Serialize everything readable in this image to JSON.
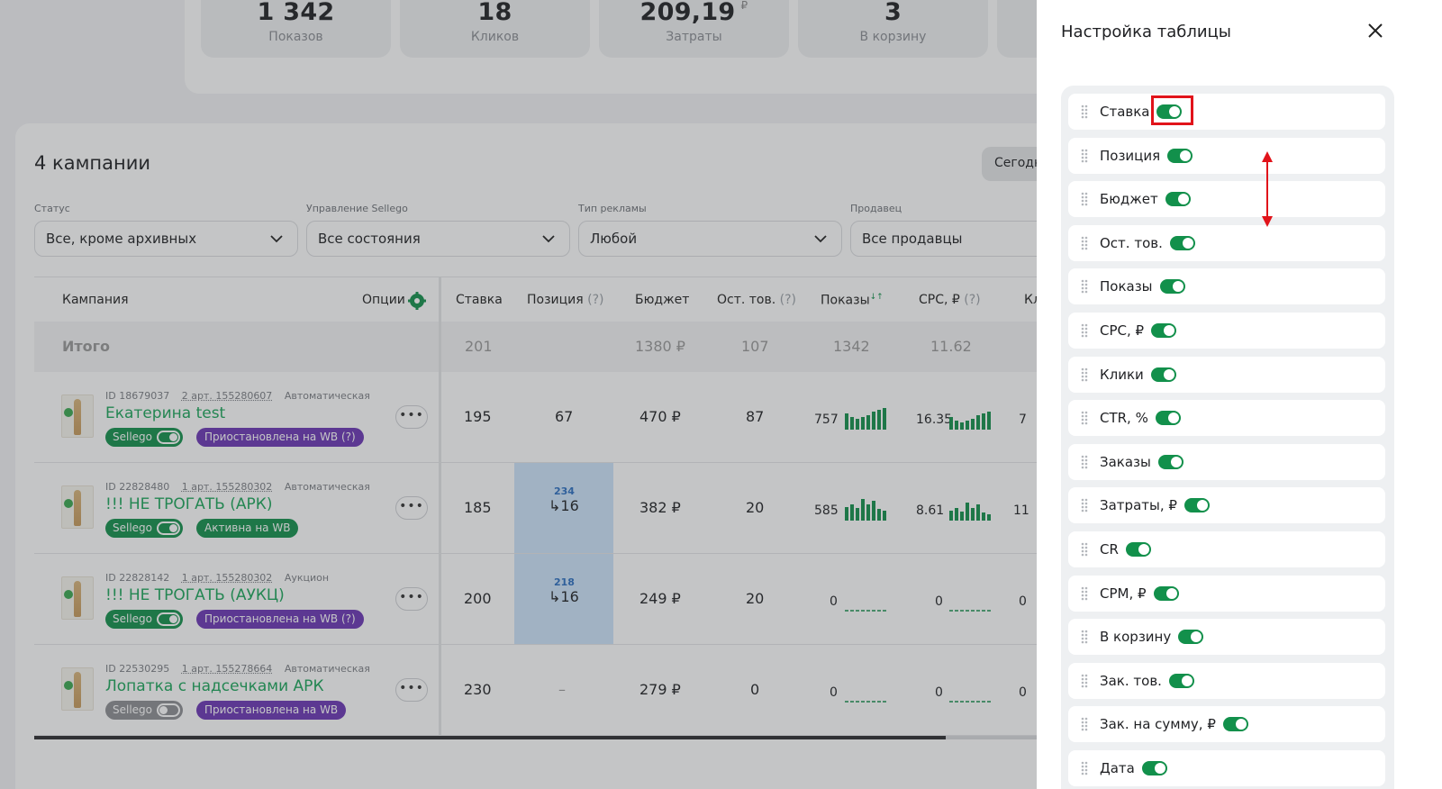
{
  "stats": [
    {
      "value": "1 342",
      "label": "Показов",
      "currency": ""
    },
    {
      "value": "18",
      "label": "Кликов",
      "currency": ""
    },
    {
      "value": "209,19",
      "label": "Затраты",
      "currency": "₽"
    },
    {
      "value": "3",
      "label": "В корзину",
      "currency": ""
    }
  ],
  "campaigns": {
    "title": "4 кампании",
    "today_button": "Сегодн",
    "filters": [
      {
        "label": "Статус",
        "value": "Все, кроме архивных"
      },
      {
        "label": "Управление Sellego",
        "value": "Все состояния"
      },
      {
        "label": "Тип рекламы",
        "value": "Любой"
      },
      {
        "label": "Продавец",
        "value": "Все продавцы"
      }
    ],
    "columns": {
      "campaign": "Кампания",
      "options": "Опции",
      "bid": "Ставка",
      "position": "Позиция",
      "position_hint": "(?)",
      "budget": "Бюджет",
      "stock": "Ост. тов.",
      "stock_hint": "(?)",
      "shows": "Показы",
      "shows_sort": "↓↑",
      "cpc": "CPC, ₽",
      "cpc_hint": "(?)",
      "clicks": "Кл"
    },
    "totals": {
      "label": "Итого",
      "bid": "201",
      "budget": "1380 ₽",
      "stock": "107",
      "shows": "1342",
      "cpc": "11.62"
    },
    "rows": [
      {
        "id": "ID 18679037",
        "art": "2 арт. 155280607",
        "type": "Автоматическая",
        "name": "Екатерина test",
        "sellego": "Sellego",
        "sellego_on": true,
        "status": "Приостановлена на WB (?)",
        "status_color": "#6a35b5",
        "bid": "195",
        "position": "67",
        "position_top": "",
        "budget": "470 ₽",
        "stock": "87",
        "shows": "757",
        "cpc": "16.35",
        "clicks": "7"
      },
      {
        "id": "ID 22828480",
        "art": "1 арт. 155280302",
        "type": "Автоматическая",
        "name": "!!! НЕ ТРОГАТЬ (АРК)",
        "sellego": "Sellego",
        "sellego_on": true,
        "status": "Активна на WB",
        "status_color": "#12904b",
        "bid": "185",
        "position": "16",
        "position_top": "234",
        "budget": "382 ₽",
        "stock": "20",
        "shows": "585",
        "cpc": "8.61",
        "clicks": "11"
      },
      {
        "id": "ID 22828142",
        "art": "1 арт. 155280302",
        "type": "Аукцион",
        "name": "!!! НЕ ТРОГАТЬ (АУКЦ)",
        "sellego": "Sellego",
        "sellego_on": true,
        "status": "Приостановлена на WB (?)",
        "status_color": "#6a35b5",
        "bid": "200",
        "position": "16",
        "position_top": "218",
        "budget": "249 ₽",
        "stock": "20",
        "shows": "0",
        "cpc": "0",
        "clicks": "0"
      },
      {
        "id": "ID 22530295",
        "art": "1 арт. 155278664",
        "type": "Автоматическая",
        "name": "Лопатка с надсечками АРК",
        "sellego": "Sellego",
        "sellego_on": false,
        "status": "Приостановлена на WB",
        "status_color": "#6a35b5",
        "bid": "230",
        "position": "–",
        "position_top": "",
        "budget": "279 ₽",
        "stock": "0",
        "shows": "0",
        "cpc": "0",
        "clicks": "0"
      }
    ]
  },
  "panel": {
    "title": "Настройка таблицы",
    "items": [
      {
        "label": "Ставка",
        "enabled": true
      },
      {
        "label": "Позиция",
        "enabled": true
      },
      {
        "label": "Бюджет",
        "enabled": true
      },
      {
        "label": "Ост. тов.",
        "enabled": true
      },
      {
        "label": "Показы",
        "enabled": true
      },
      {
        "label": "CPC, ₽",
        "enabled": true
      },
      {
        "label": "Клики",
        "enabled": true
      },
      {
        "label": "CTR, %",
        "enabled": true
      },
      {
        "label": "Заказы",
        "enabled": true
      },
      {
        "label": "Затраты, ₽",
        "enabled": true
      },
      {
        "label": "CR",
        "enabled": true
      },
      {
        "label": "CPM, ₽",
        "enabled": true
      },
      {
        "label": "В корзину",
        "enabled": true
      },
      {
        "label": "Зак. тов.",
        "enabled": true
      },
      {
        "label": "Зак. на сумму, ₽",
        "enabled": true
      },
      {
        "label": "Дата",
        "enabled": true
      }
    ]
  },
  "colors": {
    "accent": "#12904b",
    "status_purple": "#6a35b5",
    "highlight_red": "#e1131a"
  }
}
